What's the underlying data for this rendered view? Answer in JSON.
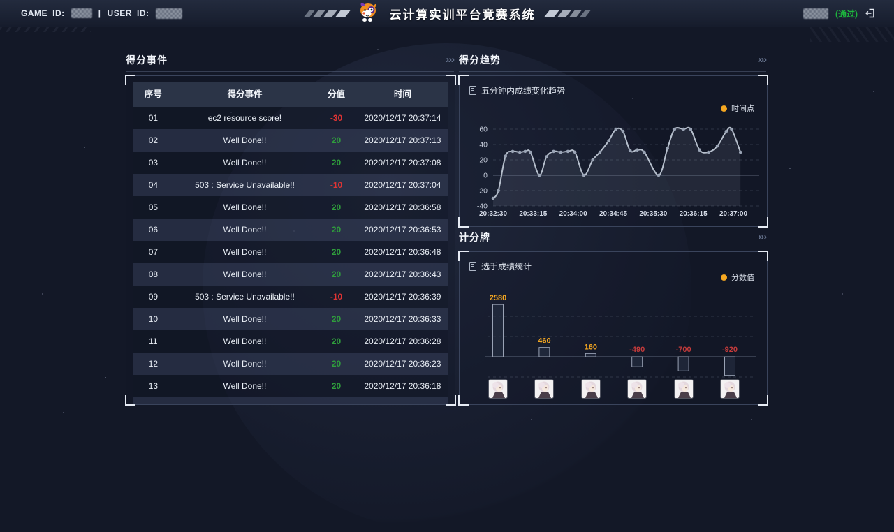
{
  "header": {
    "game_id_label": "GAME_ID:",
    "divider": "|",
    "user_id_label": "USER_ID:",
    "title": "云计算实训平台竞赛系统",
    "pass_badge": "(通过)"
  },
  "decor": {
    "chevrons": "›››"
  },
  "icons": {
    "logout": "logout-door-icon",
    "mascot": "dog-mascot-logo",
    "legend_marker": "orange-dot",
    "chart_subtitle": "clipboard-icon"
  },
  "colors": {
    "accent_orange": "#f6a821",
    "positive_green": "#2f9e3c",
    "negative_red": "#e03434",
    "bar_label_red": "#c43b3b",
    "pass_green": "#1db53d",
    "line_grey": "#b6bfcc"
  },
  "score_events": {
    "title": "得分事件",
    "columns": [
      "序号",
      "得分事件",
      "分值",
      "时间"
    ],
    "rows": [
      {
        "no": "01",
        "event": "ec2 resource score!",
        "score": "-30",
        "time": "2020/12/17 20:37:14"
      },
      {
        "no": "02",
        "event": "Well Done!!",
        "score": "20",
        "time": "2020/12/17 20:37:13"
      },
      {
        "no": "03",
        "event": "Well Done!!",
        "score": "20",
        "time": "2020/12/17 20:37:08"
      },
      {
        "no": "04",
        "event": "503 : Service Unavailable!!",
        "score": "-10",
        "time": "2020/12/17 20:37:04"
      },
      {
        "no": "05",
        "event": "Well Done!!",
        "score": "20",
        "time": "2020/12/17 20:36:58"
      },
      {
        "no": "06",
        "event": "Well Done!!",
        "score": "20",
        "time": "2020/12/17 20:36:53"
      },
      {
        "no": "07",
        "event": "Well Done!!",
        "score": "20",
        "time": "2020/12/17 20:36:48"
      },
      {
        "no": "08",
        "event": "Well Done!!",
        "score": "20",
        "time": "2020/12/17 20:36:43"
      },
      {
        "no": "09",
        "event": "503 : Service Unavailable!!",
        "score": "-10",
        "time": "2020/12/17 20:36:39"
      },
      {
        "no": "10",
        "event": "Well Done!!",
        "score": "20",
        "time": "2020/12/17 20:36:33"
      },
      {
        "no": "11",
        "event": "Well Done!!",
        "score": "20",
        "time": "2020/12/17 20:36:28"
      },
      {
        "no": "12",
        "event": "Well Done!!",
        "score": "20",
        "time": "2020/12/17 20:36:23"
      },
      {
        "no": "13",
        "event": "Well Done!!",
        "score": "20",
        "time": "2020/12/17 20:36:18"
      }
    ]
  },
  "score_trend": {
    "title": "得分趋势",
    "subtitle": "五分钟内成绩变化趋势",
    "legend": "时间点"
  },
  "scoreboard": {
    "title": "计分牌",
    "subtitle": "选手成绩统计",
    "legend": "分数值"
  },
  "chart_data": [
    {
      "type": "line",
      "title": "五分钟内成绩变化趋势",
      "legend": [
        "时间点"
      ],
      "xlabel": "",
      "ylabel": "",
      "x_ticks": [
        "20:32:30",
        "20:33:15",
        "20:34:00",
        "20:34:45",
        "20:35:30",
        "20:36:15",
        "20:37:00"
      ],
      "y_ticks": [
        60,
        40,
        20,
        0,
        -20,
        -40
      ],
      "ylim": [
        -40,
        60
      ],
      "grid": true,
      "legend_position": "top-right",
      "points": [
        [
          "20:32:30",
          -30
        ],
        [
          "20:32:36",
          -20
        ],
        [
          "20:32:44",
          25
        ],
        [
          "20:32:52",
          31
        ],
        [
          "20:33:00",
          30
        ],
        [
          "20:33:06",
          31
        ],
        [
          "20:33:12",
          30
        ],
        [
          "20:33:22",
          0
        ],
        [
          "20:33:30",
          24
        ],
        [
          "20:33:38",
          31
        ],
        [
          "20:33:46",
          30
        ],
        [
          "20:33:54",
          31
        ],
        [
          "20:34:02",
          30
        ],
        [
          "20:34:12",
          0
        ],
        [
          "20:34:22",
          20
        ],
        [
          "20:34:30",
          30
        ],
        [
          "20:34:40",
          45
        ],
        [
          "20:34:48",
          60
        ],
        [
          "20:34:56",
          57
        ],
        [
          "20:35:04",
          32
        ],
        [
          "20:35:12",
          33
        ],
        [
          "20:35:20",
          30
        ],
        [
          "20:35:36",
          0
        ],
        [
          "20:35:46",
          35
        ],
        [
          "20:35:54",
          60
        ],
        [
          "20:36:04",
          60
        ],
        [
          "20:36:12",
          60
        ],
        [
          "20:36:22",
          33
        ],
        [
          "20:36:32",
          30
        ],
        [
          "20:36:42",
          38
        ],
        [
          "20:36:52",
          57
        ],
        [
          "20:36:58",
          60
        ],
        [
          "20:37:08",
          30
        ]
      ]
    },
    {
      "type": "bar",
      "title": "选手成绩统计",
      "legend": [
        "分数值"
      ],
      "values": [
        2580,
        460,
        160,
        -490,
        -700,
        -920
      ],
      "gridline_step": 1000,
      "ylim": [
        -1100,
        2700
      ],
      "legend_position": "top-right"
    }
  ]
}
